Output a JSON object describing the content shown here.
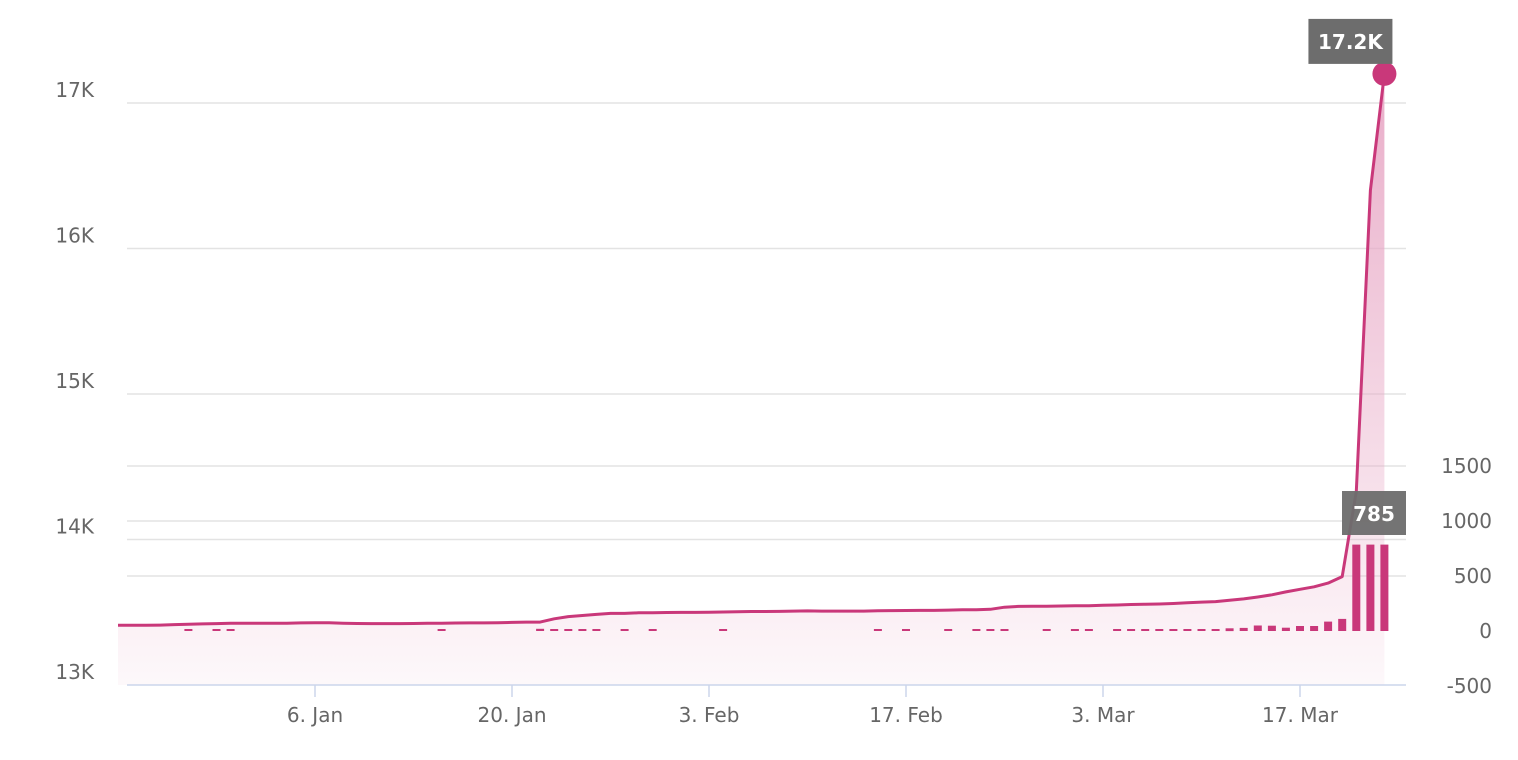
{
  "chart_data": {
    "type": "area",
    "title": "",
    "xlabel": "",
    "ylabel": "",
    "x_ticks": [
      "6. Jan",
      "20. Jan",
      "3. Feb",
      "17. Feb",
      "3. Mar",
      "17. Mar"
    ],
    "y_left_ticks": [
      "13K",
      "14K",
      "15K",
      "16K",
      "17K"
    ],
    "y_right_ticks": [
      "-500",
      "0",
      "500",
      "1000",
      "1500"
    ],
    "ylim_left": [
      13000,
      17000
    ],
    "ylim_right": [
      -500,
      1500
    ],
    "grid": true,
    "colors": {
      "line": "#c9387a",
      "area_top": "#e8a9c6",
      "bar": "#c9387a",
      "tooltip_bg": "#6d6d6d"
    },
    "series": [
      {
        "type": "area",
        "axis": "left",
        "x": [
          "2020-12-23",
          "2020-12-24",
          "2020-12-25",
          "2020-12-26",
          "2020-12-27",
          "2020-12-28",
          "2020-12-29",
          "2020-12-30",
          "2020-12-31",
          "2021-01-01",
          "2021-01-02",
          "2021-01-03",
          "2021-01-04",
          "2021-01-05",
          "2021-01-06",
          "2021-01-07",
          "2021-01-08",
          "2021-01-09",
          "2021-01-10",
          "2021-01-11",
          "2021-01-12",
          "2021-01-13",
          "2021-01-14",
          "2021-01-15",
          "2021-01-16",
          "2021-01-17",
          "2021-01-18",
          "2021-01-19",
          "2021-01-20",
          "2021-01-21",
          "2021-01-22",
          "2021-01-23",
          "2021-01-24",
          "2021-01-25",
          "2021-01-26",
          "2021-01-27",
          "2021-01-28",
          "2021-01-29",
          "2021-01-30",
          "2021-01-31",
          "2021-02-01",
          "2021-02-02",
          "2021-02-03",
          "2021-02-04",
          "2021-02-05",
          "2021-02-06",
          "2021-02-07",
          "2021-02-08",
          "2021-02-09",
          "2021-02-10",
          "2021-02-11",
          "2021-02-12",
          "2021-02-13",
          "2021-02-14",
          "2021-02-15",
          "2021-02-16",
          "2021-02-17",
          "2021-02-18",
          "2021-02-19",
          "2021-02-20",
          "2021-02-21",
          "2021-02-22",
          "2021-02-23",
          "2021-02-24",
          "2021-02-25",
          "2021-02-26",
          "2021-02-27",
          "2021-02-28",
          "2021-03-01",
          "2021-03-02",
          "2021-03-03",
          "2021-03-04",
          "2021-03-05",
          "2021-03-06",
          "2021-03-07",
          "2021-03-08",
          "2021-03-09",
          "2021-03-10",
          "2021-03-11",
          "2021-03-12",
          "2021-03-13",
          "2021-03-14",
          "2021-03-15",
          "2021-03-16",
          "2021-03-17",
          "2021-03-18",
          "2021-03-19",
          "2021-03-20",
          "2021-03-21",
          "2021-03-22",
          "2021-03-23"
        ],
        "values": [
          13410,
          13410,
          13410,
          13412,
          13415,
          13418,
          13420,
          13422,
          13425,
          13425,
          13425,
          13425,
          13425,
          13427,
          13428,
          13428,
          13425,
          13423,
          13422,
          13422,
          13422,
          13423,
          13424,
          13424,
          13426,
          13427,
          13427,
          13428,
          13430,
          13432,
          13432,
          13455,
          13470,
          13478,
          13485,
          13492,
          13492,
          13496,
          13496,
          13498,
          13499,
          13499,
          13500,
          13502,
          13504,
          13505,
          13505,
          13506,
          13508,
          13509,
          13508,
          13508,
          13508,
          13508,
          13510,
          13511,
          13512,
          13513,
          13513,
          13515,
          13517,
          13517,
          13520,
          13535,
          13540,
          13541,
          13541,
          13543,
          13544,
          13545,
          13548,
          13550,
          13553,
          13555,
          13557,
          13560,
          13565,
          13570,
          13573,
          13582,
          13592,
          13605,
          13620,
          13640,
          13658,
          13675,
          13700,
          13745,
          14330,
          16400,
          17200
        ]
      },
      {
        "type": "column",
        "axis": "right",
        "x": [
          "2020-12-28",
          "2020-12-30",
          "2020-12-31",
          "2021-01-15",
          "2021-01-22",
          "2021-01-23",
          "2021-01-24",
          "2021-01-25",
          "2021-01-26",
          "2021-01-28",
          "2021-01-30",
          "2021-02-04",
          "2021-02-15",
          "2021-02-17",
          "2021-02-20",
          "2021-02-22",
          "2021-02-23",
          "2021-02-24",
          "2021-02-27",
          "2021-03-01",
          "2021-03-02",
          "2021-03-04",
          "2021-03-05",
          "2021-03-06",
          "2021-03-07",
          "2021-03-08",
          "2021-03-09",
          "2021-03-10",
          "2021-03-11",
          "2021-03-12",
          "2021-03-13",
          "2021-03-14",
          "2021-03-15",
          "2021-03-16",
          "2021-03-17",
          "2021-03-18",
          "2021-03-19",
          "2021-03-20",
          "2021-03-21",
          "2021-03-22",
          "2021-03-23"
        ],
        "values": [
          5,
          5,
          5,
          5,
          20,
          15,
          8,
          5,
          5,
          5,
          5,
          5,
          5,
          5,
          5,
          5,
          15,
          5,
          5,
          5,
          5,
          5,
          5,
          5,
          5,
          5,
          5,
          5,
          5,
          25,
          28,
          50,
          48,
          30,
          45,
          45,
          85,
          110,
          785,
          785,
          785
        ]
      }
    ],
    "tooltips": {
      "line_value": "17.2K",
      "bar_value": "785"
    }
  }
}
